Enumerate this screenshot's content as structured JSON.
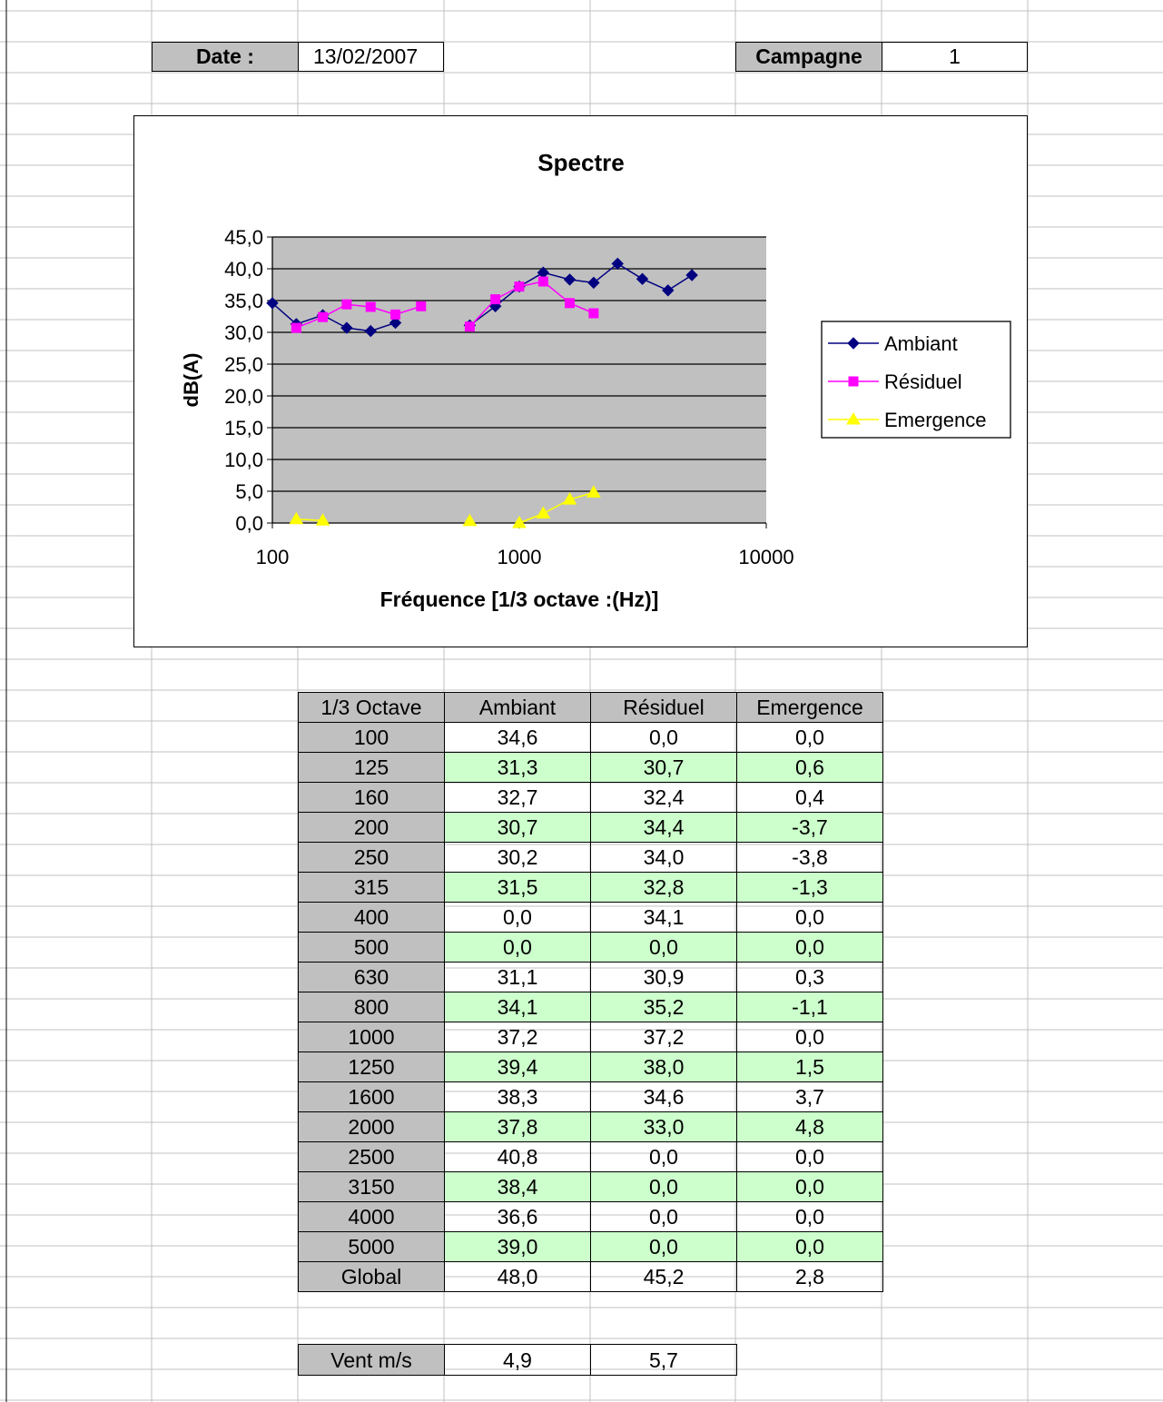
{
  "header": {
    "date_label": "Date :",
    "date_value": "13/02/2007",
    "campaign_label": "Campagne",
    "campaign_value": "1"
  },
  "chart_data": {
    "type": "line",
    "title": "Spectre",
    "xlabel": "Fréquence [1/3 octave :(Hz)]",
    "ylabel": "dB(A)",
    "x_scale": "log",
    "xlim": [
      100,
      10000
    ],
    "ylim": [
      0,
      45
    ],
    "x_ticks": [
      "100",
      "1000",
      "10000"
    ],
    "y_ticks": [
      "0,0",
      "5,0",
      "10,0",
      "15,0",
      "20,0",
      "25,0",
      "30,0",
      "35,0",
      "40,0",
      "45,0"
    ],
    "grid": "horizontal",
    "legend_position": "right",
    "plot_background": "#c0c0c0",
    "series": [
      {
        "name": "Ambiant",
        "color": "#000080",
        "marker": "diamond",
        "x": [
          100,
          125,
          160,
          200,
          250,
          315,
          630,
          800,
          1000,
          1250,
          1600,
          2000,
          2500,
          3150,
          4000,
          5000
        ],
        "y": [
          34.6,
          31.3,
          32.7,
          30.7,
          30.2,
          31.5,
          31.1,
          34.1,
          37.2,
          39.4,
          38.3,
          37.8,
          40.8,
          38.4,
          36.6,
          39.0
        ]
      },
      {
        "name": "Résiduel",
        "color": "#ff00ff",
        "marker": "square",
        "x": [
          125,
          160,
          200,
          250,
          315,
          400,
          630,
          800,
          1000,
          1250,
          1600,
          2000
        ],
        "y": [
          30.7,
          32.4,
          34.4,
          34.0,
          32.8,
          34.1,
          30.9,
          35.2,
          37.2,
          38.0,
          34.6,
          33.0
        ]
      },
      {
        "name": "Emergence",
        "color": "#ffff00",
        "marker": "triangle",
        "x": [
          125,
          160,
          630,
          1000,
          1250,
          1600,
          2000
        ],
        "y": [
          0.6,
          0.4,
          0.3,
          0.0,
          1.5,
          3.7,
          4.8
        ]
      }
    ]
  },
  "table": {
    "headers": [
      "1/3 Octave",
      "Ambiant",
      "Résiduel",
      "Emergence"
    ],
    "rows": [
      [
        "100",
        "34,6",
        "0,0",
        "0,0"
      ],
      [
        "125",
        "31,3",
        "30,7",
        "0,6"
      ],
      [
        "160",
        "32,7",
        "32,4",
        "0,4"
      ],
      [
        "200",
        "30,7",
        "34,4",
        "-3,7"
      ],
      [
        "250",
        "30,2",
        "34,0",
        "-3,8"
      ],
      [
        "315",
        "31,5",
        "32,8",
        "-1,3"
      ],
      [
        "400",
        "0,0",
        "34,1",
        "0,0"
      ],
      [
        "500",
        "0,0",
        "0,0",
        "0,0"
      ],
      [
        "630",
        "31,1",
        "30,9",
        "0,3"
      ],
      [
        "800",
        "34,1",
        "35,2",
        "-1,1"
      ],
      [
        "1000",
        "37,2",
        "37,2",
        "0,0"
      ],
      [
        "1250",
        "39,4",
        "38,0",
        "1,5"
      ],
      [
        "1600",
        "38,3",
        "34,6",
        "3,7"
      ],
      [
        "2000",
        "37,8",
        "33,0",
        "4,8"
      ],
      [
        "2500",
        "40,8",
        "0,0",
        "0,0"
      ],
      [
        "3150",
        "38,4",
        "0,0",
        "0,0"
      ],
      [
        "4000",
        "36,6",
        "0,0",
        "0,0"
      ],
      [
        "5000",
        "39,0",
        "0,0",
        "0,0"
      ],
      [
        "Global",
        "48,0",
        "45,2",
        "2,8"
      ]
    ]
  },
  "wind": {
    "label": "Vent m/s",
    "ambiant": "4,9",
    "residuel": "5,7"
  },
  "colors": {
    "header_fill": "#c0c0c0",
    "alt_row_fill": "#ccffcc",
    "gridline": "#c0c0c0"
  }
}
